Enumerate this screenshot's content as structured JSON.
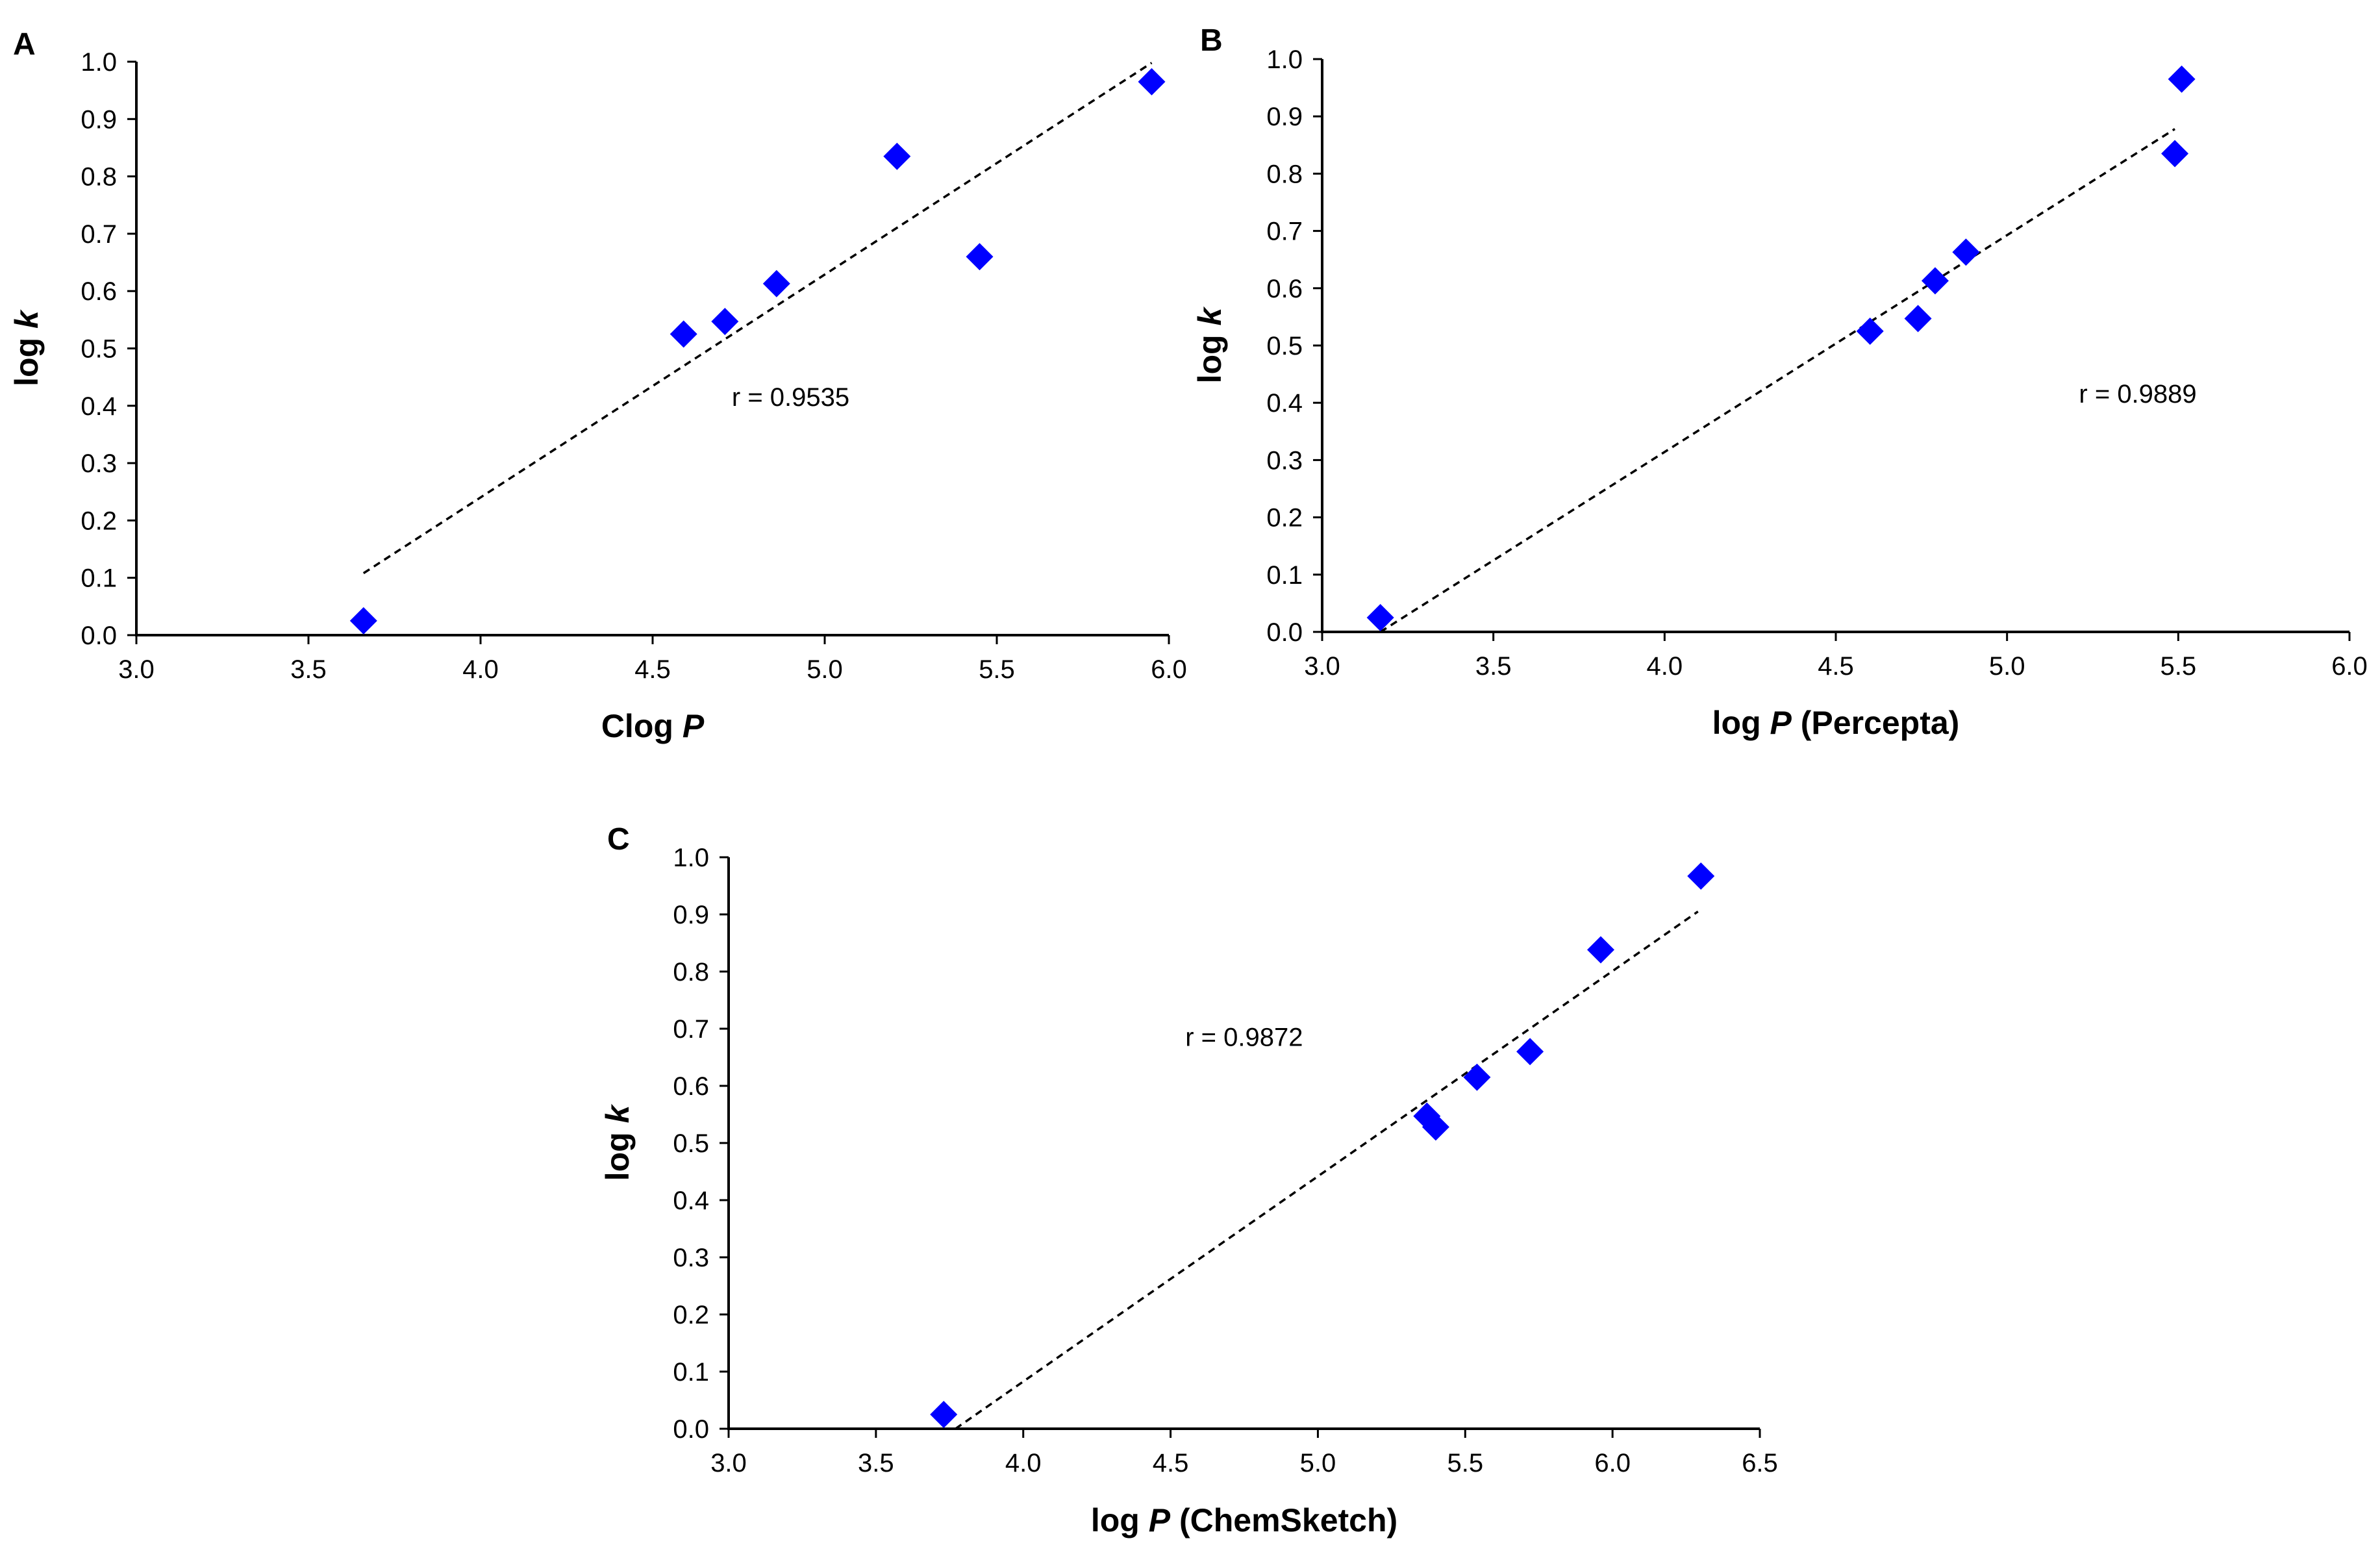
{
  "figure": {
    "marker_color": "#0000FF",
    "axis_color": "#000000",
    "trend_color": "#000000"
  },
  "chart_data": [
    {
      "id": "A",
      "type": "scatter",
      "panel_label": "A",
      "xlabel": "Clog ",
      "xlabel_italic": "P",
      "xlabel_suffix": "",
      "ylabel": "log ",
      "ylabel_italic": "k",
      "xlim": [
        3.0,
        6.0
      ],
      "ylim": [
        0.0,
        1.0
      ],
      "xticks": [
        "3.0",
        "3.5",
        "4.0",
        "4.5",
        "5.0",
        "5.5",
        "6.0"
      ],
      "yticks": [
        "0.0",
        "0.1",
        "0.2",
        "0.3",
        "0.4",
        "0.5",
        "0.6",
        "0.7",
        "0.8",
        "0.9",
        "1.0"
      ],
      "points": [
        {
          "x": 3.66,
          "y": 0.025
        },
        {
          "x": 4.59,
          "y": 0.525
        },
        {
          "x": 4.71,
          "y": 0.547
        },
        {
          "x": 4.86,
          "y": 0.613
        },
        {
          "x": 5.21,
          "y": 0.835
        },
        {
          "x": 5.45,
          "y": 0.66
        },
        {
          "x": 5.95,
          "y": 0.965
        }
      ],
      "trendline": {
        "x1": 3.66,
        "y1": 0.108,
        "x2": 5.95,
        "y2": 0.998
      },
      "annotation": "r = 0.9535",
      "annotation_at": {
        "x": 4.73,
        "y": 0.4
      }
    },
    {
      "id": "B",
      "type": "scatter",
      "panel_label": "B",
      "xlabel": "log ",
      "xlabel_italic": "P",
      "xlabel_suffix": " (Percepta)",
      "ylabel": "log ",
      "ylabel_italic": "k",
      "xlim": [
        3.0,
        6.0
      ],
      "ylim": [
        0.0,
        1.0
      ],
      "xticks": [
        "3.0",
        "3.5",
        "4.0",
        "4.5",
        "5.0",
        "5.5",
        "6.0"
      ],
      "yticks": [
        "0.0",
        "0.1",
        "0.2",
        "0.3",
        "0.4",
        "0.5",
        "0.6",
        "0.7",
        "0.8",
        "0.9",
        "1.0"
      ],
      "points": [
        {
          "x": 3.17,
          "y": 0.025
        },
        {
          "x": 4.6,
          "y": 0.525
        },
        {
          "x": 4.74,
          "y": 0.547
        },
        {
          "x": 4.79,
          "y": 0.613
        },
        {
          "x": 4.88,
          "y": 0.663
        },
        {
          "x": 5.49,
          "y": 0.835
        },
        {
          "x": 5.51,
          "y": 0.965
        }
      ],
      "trendline": {
        "x1": 3.17,
        "y1": 0.0,
        "x2": 5.49,
        "y2": 0.878
      },
      "annotation": "r = 0.9889",
      "annotation_at": {
        "x": 5.21,
        "y": 0.4
      }
    },
    {
      "id": "C",
      "type": "scatter",
      "panel_label": "C",
      "xlabel": "log ",
      "xlabel_italic": "P",
      "xlabel_suffix": " (ChemSketch)",
      "ylabel": "log ",
      "ylabel_italic": "k",
      "xlim": [
        3.0,
        6.5
      ],
      "ylim": [
        0.0,
        1.0
      ],
      "xticks": [
        "3.0",
        "3.5",
        "4.0",
        "4.5",
        "5.0",
        "5.5",
        "6.0",
        "6.5"
      ],
      "yticks": [
        "0.0",
        "0.1",
        "0.2",
        "0.3",
        "0.4",
        "0.5",
        "0.6",
        "0.7",
        "0.8",
        "0.9",
        "1.0"
      ],
      "points": [
        {
          "x": 3.73,
          "y": 0.025
        },
        {
          "x": 5.37,
          "y": 0.547
        },
        {
          "x": 5.4,
          "y": 0.528
        },
        {
          "x": 5.54,
          "y": 0.615
        },
        {
          "x": 5.72,
          "y": 0.66
        },
        {
          "x": 5.96,
          "y": 0.838
        },
        {
          "x": 6.3,
          "y": 0.967
        }
      ],
      "trendline": {
        "x1": 3.77,
        "y1": 0.0,
        "x2": 6.29,
        "y2": 0.905
      },
      "annotation": "r = 0.9872",
      "annotation_at": {
        "x": 4.55,
        "y": 0.67
      }
    }
  ]
}
